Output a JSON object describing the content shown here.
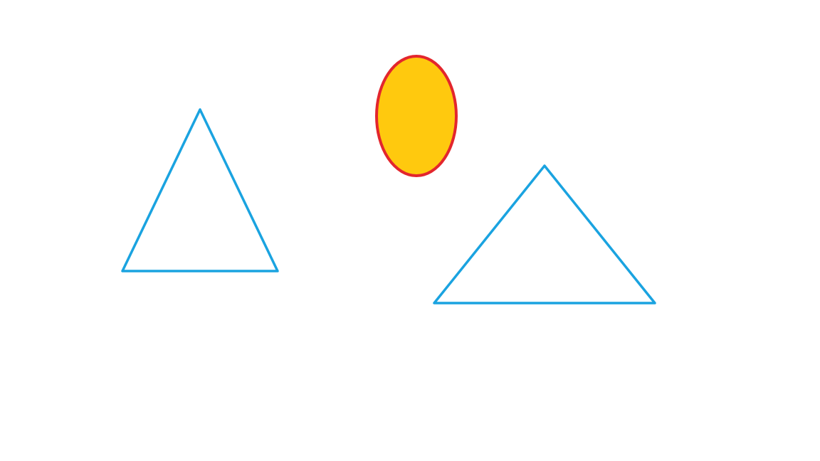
{
  "canvas": {
    "background_color": "#ffffff"
  },
  "shapes": {
    "left_triangle": {
      "shape": "triangle",
      "stroke_color": "#1aa3e0",
      "fill_color": "none"
    },
    "right_triangle": {
      "shape": "triangle",
      "stroke_color": "#1aa3e0",
      "fill_color": "none"
    },
    "ellipse": {
      "shape": "ellipse",
      "stroke_color": "#e3262d",
      "fill_color": "#ffc90e"
    }
  }
}
